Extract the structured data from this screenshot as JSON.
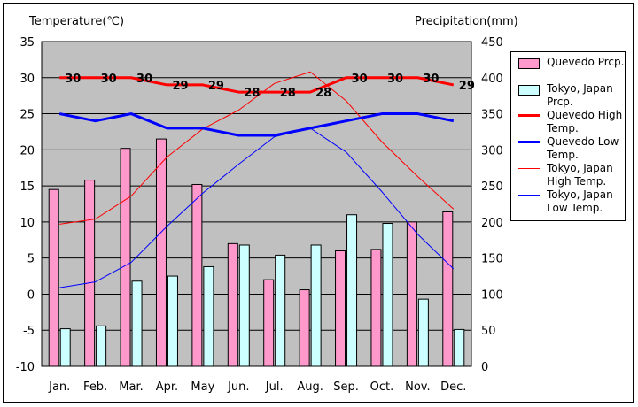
{
  "chart_data": {
    "type": "bar",
    "categories": [
      "Jan.",
      "Feb.",
      "Mar.",
      "Apr.",
      "May",
      "Jun.",
      "Jul.",
      "Aug.",
      "Sep.",
      "Oct.",
      "Nov.",
      "Dec."
    ],
    "left_axis": {
      "label": "Temperature(℃)",
      "min": -10,
      "max": 35,
      "step": 5,
      "ticks": [
        "-10",
        "-5",
        "0",
        "5",
        "10",
        "15",
        "20",
        "25",
        "30",
        "35"
      ]
    },
    "right_axis": {
      "label": "Precipitation(mm)",
      "min": 0,
      "max": 450,
      "step": 50,
      "ticks": [
        "0",
        "50",
        "100",
        "150",
        "200",
        "250",
        "300",
        "350",
        "400",
        "450"
      ]
    },
    "grid": true,
    "legend_position": "right",
    "series": [
      {
        "name": "Quevedo Prcp.",
        "kind": "bar",
        "axis": "right",
        "color": "#ff99cc",
        "values": [
          245,
          258,
          302,
          315,
          252,
          170,
          120,
          106,
          160,
          162,
          200,
          214
        ]
      },
      {
        "name": "Tokyo, Japan Prcp.",
        "kind": "bar",
        "axis": "right",
        "color": "#ccffff",
        "values": [
          52,
          56,
          118,
          125,
          138,
          168,
          154,
          168,
          210,
          198,
          93,
          51
        ]
      },
      {
        "name": "Quevedo High Temp.",
        "kind": "line",
        "axis": "left",
        "color": "#ff0000",
        "width": 3,
        "values": [
          30,
          30,
          30,
          29,
          29,
          28,
          28,
          28,
          30,
          30,
          30,
          29
        ],
        "labels": [
          "30",
          "30",
          "30",
          "29",
          "29",
          "28",
          "28",
          "28",
          "30",
          "30",
          "30",
          "29"
        ]
      },
      {
        "name": "Quevedo Low Temp.",
        "kind": "line",
        "axis": "left",
        "color": "#0000ff",
        "width": 3,
        "values": [
          25,
          24,
          25,
          23,
          23,
          22,
          22,
          23,
          24,
          25,
          25,
          24
        ]
      },
      {
        "name": "Tokyo, Japan High Temp.",
        "kind": "line",
        "axis": "left",
        "color": "#ff0000",
        "width": 1,
        "values": [
          9.7,
          10.4,
          13.6,
          19.0,
          22.9,
          25.5,
          29.2,
          30.8,
          26.8,
          21.1,
          16.3,
          11.8
        ]
      },
      {
        "name": "Tokyo, Japan Low Temp.",
        "kind": "line",
        "axis": "left",
        "color": "#0000ff",
        "width": 1,
        "values": [
          0.9,
          1.7,
          4.4,
          9.4,
          14.0,
          18.0,
          21.8,
          23.0,
          19.7,
          14.2,
          8.3,
          3.5
        ]
      }
    ]
  },
  "legend": {
    "items": [
      {
        "label": "Quevedo Prcp.",
        "kind": "bar",
        "color": "#ff99cc"
      },
      {
        "label": "Tokyo, Japan Prcp.",
        "kind": "bar",
        "color": "#ccffff"
      },
      {
        "label": "Quevedo High Temp.",
        "kind": "line",
        "color": "#ff0000",
        "thick": true
      },
      {
        "label": "Quevedo Low Temp.",
        "kind": "line",
        "color": "#0000ff",
        "thick": true
      },
      {
        "label": "Tokyo, Japan High Temp.",
        "kind": "line",
        "color": "#ff0000",
        "thick": false
      },
      {
        "label": "Tokyo, Japan Low Temp.",
        "kind": "line",
        "color": "#0000ff",
        "thick": false
      }
    ]
  },
  "colors": {
    "plot_background": "#c0c0c0",
    "gridline": "#000000"
  }
}
